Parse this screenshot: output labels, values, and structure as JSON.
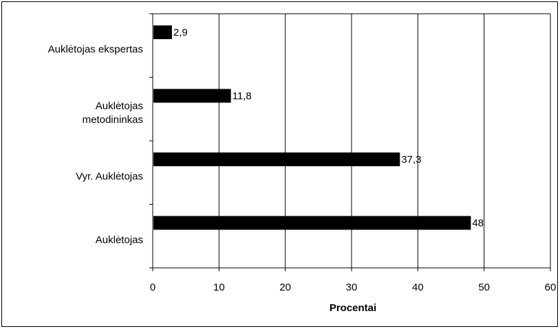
{
  "chart_data": {
    "type": "bar",
    "orientation": "horizontal",
    "categories": [
      "Auklėtojas ekspertas",
      "Auklėtojas metodininkas",
      "Vyr. Auklėtojas",
      "Auklėtojas"
    ],
    "category_lines": [
      [
        "Auklėtojas ekspertas"
      ],
      [
        "Auklėtojas",
        "metodininkas"
      ],
      [
        "Vyr. Auklėtojas"
      ],
      [
        "Auklėtojas"
      ]
    ],
    "values": [
      2.9,
      11.8,
      37.3,
      48
    ],
    "value_labels": [
      "2,9",
      "11,8",
      "37,3",
      "48"
    ],
    "xlabel": "Procentai",
    "ylabel": "",
    "xlim": [
      0,
      60
    ],
    "xticks": [
      0,
      10,
      20,
      30,
      40,
      50,
      60
    ],
    "grid": true,
    "legend": "none",
    "bar_color": "#000000"
  }
}
